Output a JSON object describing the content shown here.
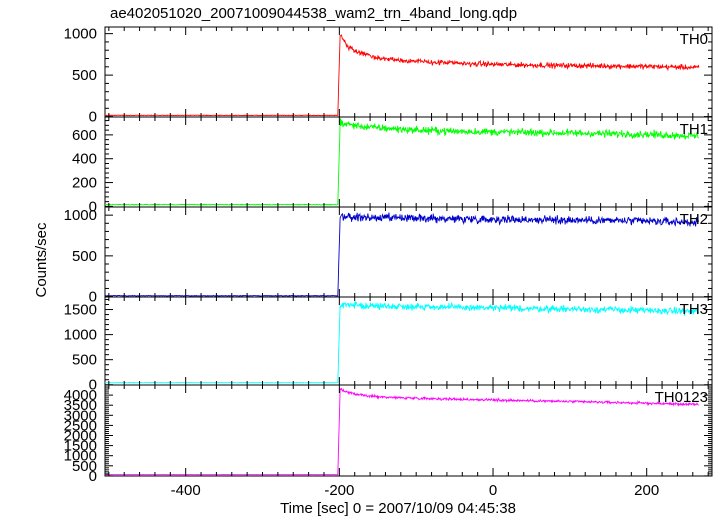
{
  "chart_data": {
    "type": "line",
    "title": "ae402051020_20071009044538_wam2_trn_4band_long.qdp",
    "xlabel": "Time [sec] 0 = 2007/10/09 04:45:38",
    "ylabel": "Counts/sec",
    "xlim": [
      -505,
      285
    ],
    "x_ticks": [
      -400,
      -200,
      0,
      200
    ],
    "grid": false,
    "legend": "none",
    "event_time": -200,
    "data_end": 268,
    "panels": [
      {
        "name": "TH0",
        "color": "#ff0000",
        "ylim": [
          -5,
          1080
        ],
        "yticks": [
          0,
          500,
          1000
        ],
        "series": {
          "x": [
            -505,
            -202,
            -199,
            -195,
            -190,
            -180,
            -170,
            -160,
            -150,
            -140,
            -120,
            -100,
            -80,
            -60,
            -40,
            -20,
            0,
            50,
            100,
            150,
            200,
            268
          ],
          "y": [
            15,
            15,
            1000,
            930,
            850,
            790,
            760,
            730,
            710,
            700,
            680,
            665,
            655,
            650,
            640,
            635,
            630,
            620,
            615,
            610,
            605,
            590
          ]
        },
        "noise": 55
      },
      {
        "name": "TH1",
        "color": "#00ff00",
        "ylim": [
          -5,
          750
        ],
        "yticks": [
          0,
          200,
          400,
          600
        ],
        "series": {
          "x": [
            -505,
            -202,
            -199,
            -190,
            -170,
            -150,
            -100,
            -50,
            0,
            50,
            100,
            150,
            200,
            268
          ],
          "y": [
            15,
            15,
            700,
            690,
            670,
            660,
            640,
            630,
            625,
            620,
            615,
            610,
            605,
            590
          ]
        },
        "noise": 55
      },
      {
        "name": "TH2",
        "color": "#0000cc",
        "ylim": [
          -5,
          1100
        ],
        "yticks": [
          0,
          500,
          1000
        ],
        "series": {
          "x": [
            -505,
            -202,
            -199,
            -190,
            -150,
            -100,
            -50,
            0,
            50,
            100,
            150,
            200,
            268
          ],
          "y": [
            10,
            10,
            980,
            975,
            965,
            960,
            955,
            950,
            945,
            940,
            935,
            925,
            910
          ]
        },
        "noise": 90
      },
      {
        "name": "TH3",
        "color": "#00ffff",
        "ylim": [
          -5,
          1750
        ],
        "yticks": [
          0,
          500,
          1000,
          1500
        ],
        "series": {
          "x": [
            -505,
            -202,
            -199,
            -190,
            -150,
            -100,
            -50,
            0,
            50,
            100,
            150,
            200,
            268
          ],
          "y": [
            40,
            40,
            1600,
            1590,
            1570,
            1560,
            1545,
            1530,
            1520,
            1510,
            1500,
            1480,
            1460
          ]
        },
        "noise": 120
      },
      {
        "name": "TH0123",
        "color": "#ff00ff",
        "ylim": [
          -5,
          4500
        ],
        "yticks": [
          0,
          500,
          1000,
          1500,
          2000,
          2500,
          3000,
          3500,
          4000
        ],
        "series": {
          "x": [
            -505,
            -202,
            -199,
            -195,
            -190,
            -180,
            -170,
            -160,
            -150,
            -130,
            -100,
            -80,
            -50,
            0,
            50,
            100,
            150,
            200,
            268
          ],
          "y": [
            60,
            60,
            4300,
            4220,
            4150,
            4050,
            4000,
            3950,
            3920,
            3880,
            3850,
            3830,
            3800,
            3760,
            3720,
            3680,
            3640,
            3600,
            3530
          ]
        },
        "noise": 110
      }
    ]
  }
}
